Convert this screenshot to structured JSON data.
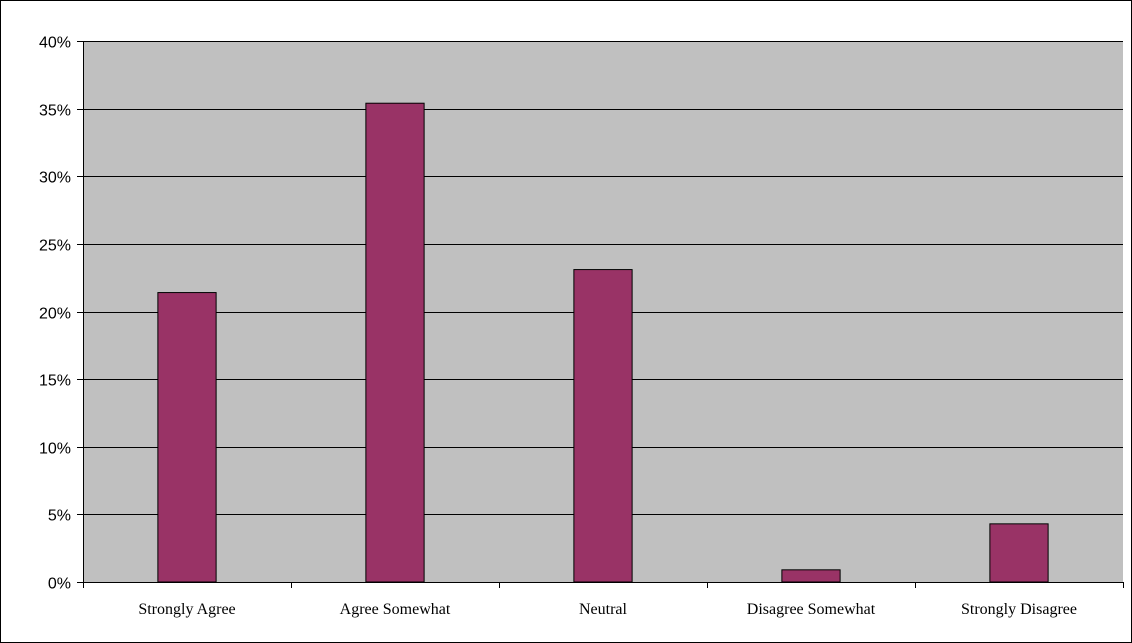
{
  "chart_data": {
    "type": "bar",
    "title": "",
    "xlabel": "",
    "ylabel": "",
    "categories": [
      "Strongly Agree",
      "Agree Somewhat",
      "Neutral",
      "Disagree Somewhat",
      "Strongly Disagree"
    ],
    "values": [
      0.214,
      0.354,
      0.231,
      0.009,
      0.043
    ],
    "ylim": [
      0,
      0.4
    ],
    "yticks": [
      "0%",
      "5%",
      "10%",
      "15%",
      "20%",
      "25%",
      "30%",
      "35%",
      "40%"
    ],
    "grid": true,
    "legend": "none",
    "colors": {
      "bar": "#993366",
      "plot_background": "#c0c0c0",
      "gridline": "#000000"
    }
  }
}
